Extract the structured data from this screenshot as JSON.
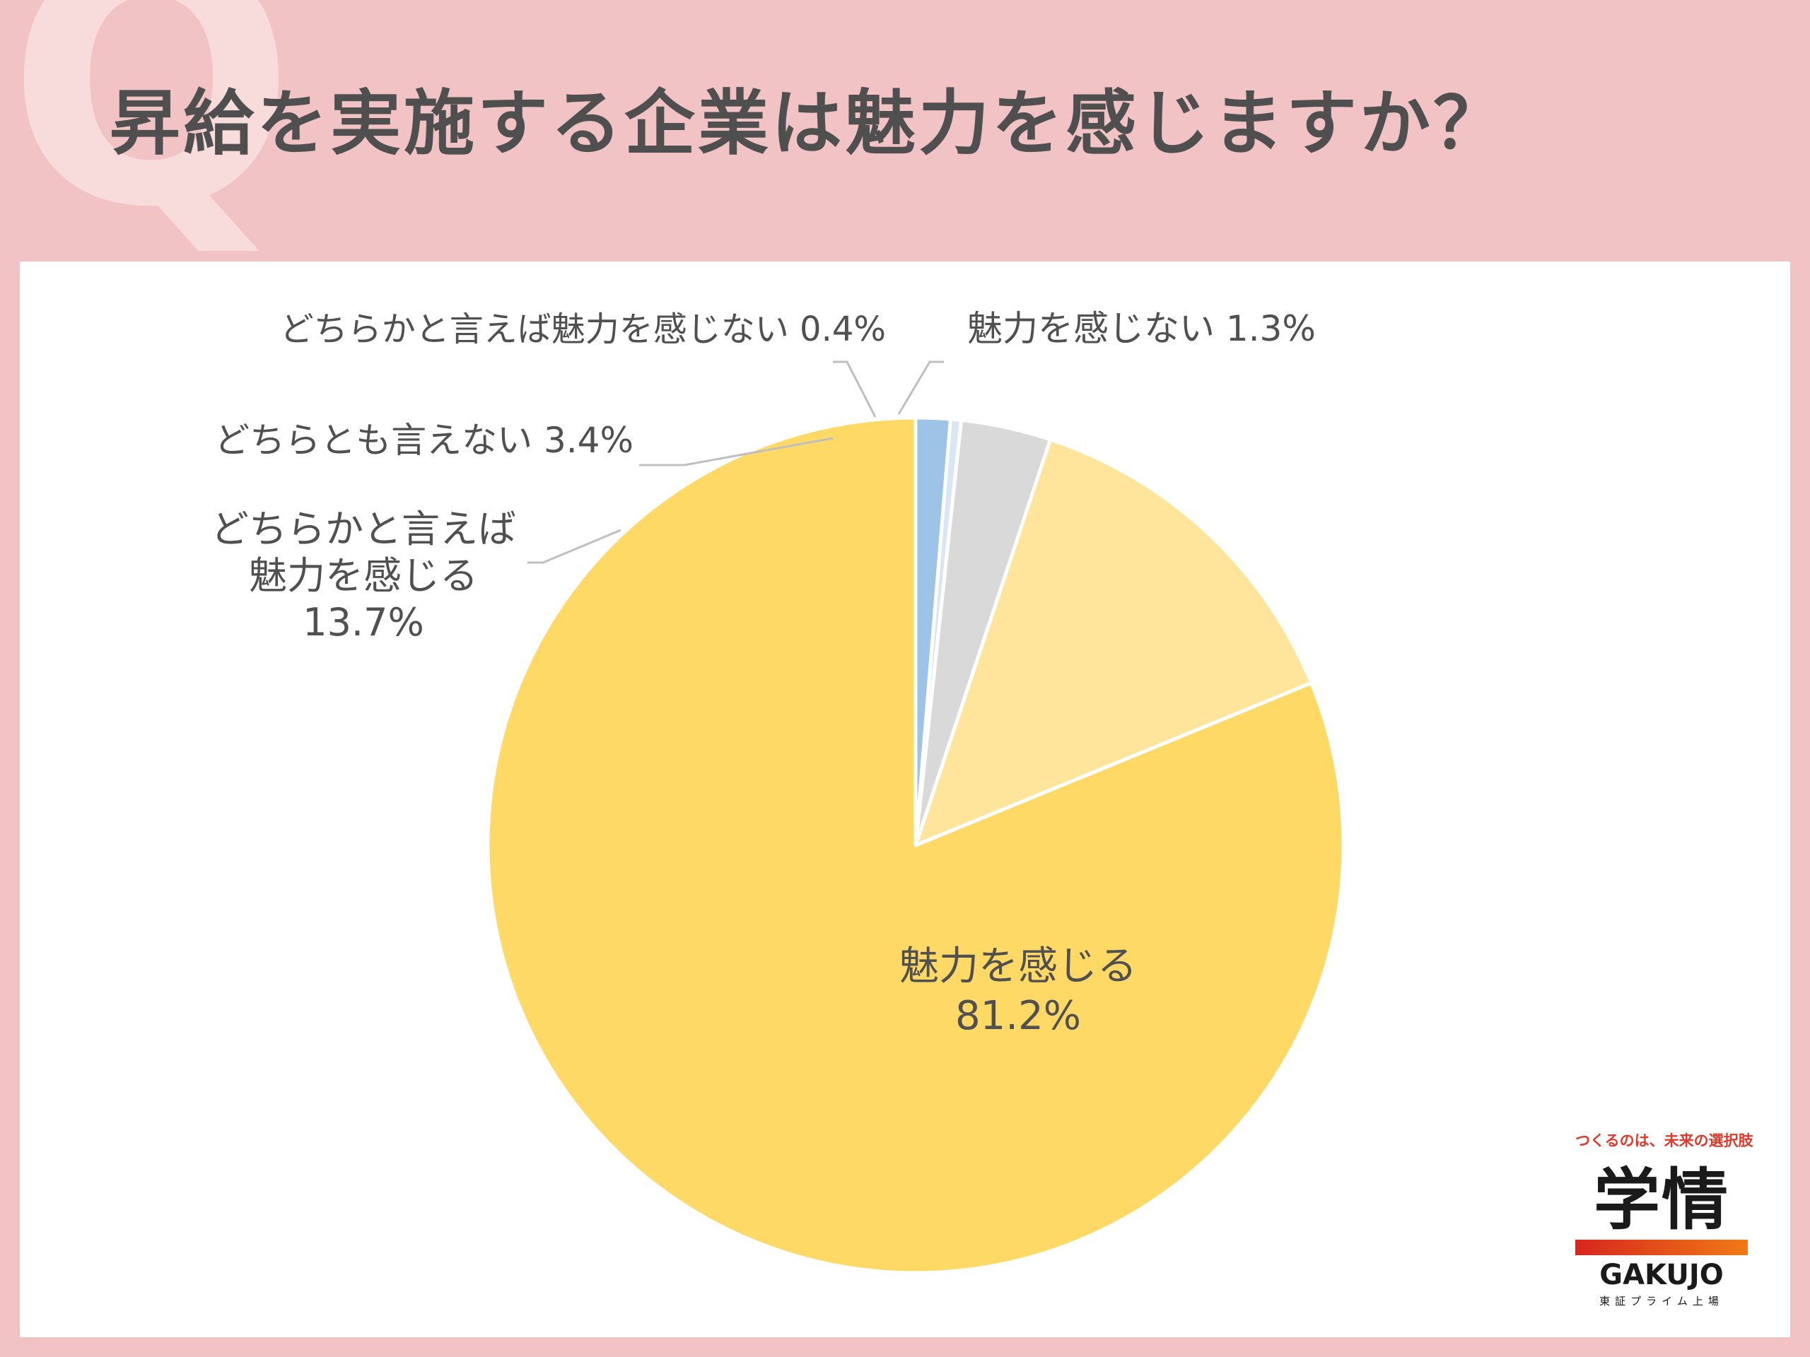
{
  "header": {
    "q_mark": "Q",
    "title": "昇給を実施する企業は魅力を感じますか？"
  },
  "chart_data": {
    "type": "pie",
    "start_angle_deg": 0,
    "direction": "counterclockwise",
    "labels": [
      "魅力を感じる",
      "どちらかと言えば魅力を感じる",
      "どちらとも言えない",
      "どちらかと言えば魅力を感じない",
      "魅力を感じない"
    ],
    "values": [
      81.2,
      13.7,
      3.4,
      0.4,
      1.3
    ],
    "value_labels": [
      "81.2%",
      "13.7%",
      "3.4%",
      "0.4%",
      "1.3%"
    ],
    "colors": [
      "#ffd966",
      "#ffe59c",
      "#d9d9d9",
      "#dbe6f5",
      "#9dc3e6"
    ],
    "leader_color": "#bfbfbf"
  },
  "labels": {
    "s0_line1": "魅力を感じる",
    "s0_line2": "81.2%",
    "s1_line1": "どちらかと言えば",
    "s1_line2": "魅力を感じる",
    "s1_line3": "13.7%",
    "s2": "どちらとも言えない 3.4%",
    "s3": "どちらかと言えば魅力を感じない 0.4%",
    "s4": "魅力を感じない 1.3%"
  },
  "brand": {
    "tagline": "つくるのは、未来の選択肢",
    "logo": "学情",
    "name": "GAKUJO",
    "listing": "東証プライム上場",
    "gradient": [
      "#d7261e",
      "#f07a16"
    ]
  }
}
